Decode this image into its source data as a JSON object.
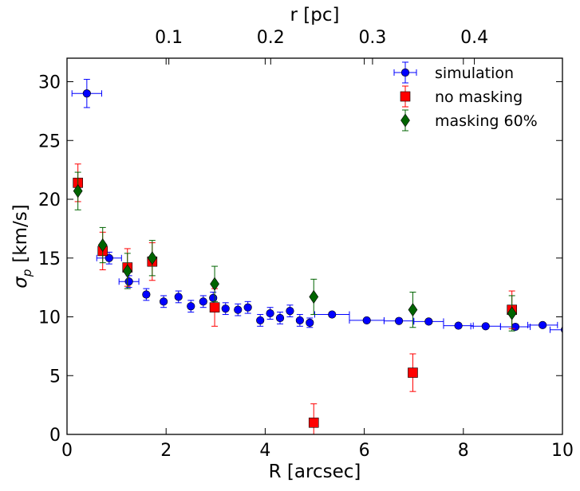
{
  "chart_data": {
    "type": "scatter",
    "xlabel": "R [arcsec]",
    "ylabel_symbol": "σ",
    "ylabel_subscript": "p",
    "ylabel_units": "[km/s]",
    "top_xlabel": "r [pc]",
    "xlim": [
      0,
      10
    ],
    "ylim": [
      0,
      32
    ],
    "top_xlim": [
      0,
      0.4865
    ],
    "xticks": [
      0,
      2,
      4,
      6,
      8,
      10
    ],
    "xtick_labels": [
      "0",
      "2",
      "4",
      "6",
      "8",
      "10"
    ],
    "yticks": [
      0,
      5,
      10,
      15,
      20,
      25,
      30
    ],
    "ytick_labels": [
      "0",
      "5",
      "10",
      "15",
      "20",
      "25",
      "30"
    ],
    "top_xticks": [
      0.1,
      0.2,
      0.3,
      0.4
    ],
    "top_xtick_labels": [
      "0.1",
      "0.2",
      "0.3",
      "0.4"
    ],
    "legend_position": "top-right",
    "series": [
      {
        "name": "simulation",
        "color": "#0000ff",
        "marker": "circle",
        "points": [
          {
            "x": 0.4,
            "y": 29.0,
            "xerr": 0.3,
            "yerr": 1.2
          },
          {
            "x": 0.85,
            "y": 15.0,
            "xerr": 0.25,
            "yerr": 0.5
          },
          {
            "x": 1.25,
            "y": 13.0,
            "xerr": 0.2,
            "yerr": 0.5
          },
          {
            "x": 1.6,
            "y": 11.9,
            "xerr": 0,
            "yerr": 0.5
          },
          {
            "x": 1.95,
            "y": 11.3,
            "xerr": 0,
            "yerr": 0.5
          },
          {
            "x": 2.25,
            "y": 11.7,
            "xerr": 0,
            "yerr": 0.5
          },
          {
            "x": 2.5,
            "y": 10.9,
            "xerr": 0,
            "yerr": 0.5
          },
          {
            "x": 2.75,
            "y": 11.3,
            "xerr": 0,
            "yerr": 0.5
          },
          {
            "x": 2.95,
            "y": 11.6,
            "xerr": 0,
            "yerr": 0.5
          },
          {
            "x": 3.2,
            "y": 10.7,
            "xerr": 0,
            "yerr": 0.5
          },
          {
            "x": 3.45,
            "y": 10.6,
            "xerr": 0,
            "yerr": 0.5
          },
          {
            "x": 3.65,
            "y": 10.8,
            "xerr": 0,
            "yerr": 0.5
          },
          {
            "x": 3.9,
            "y": 9.7,
            "xerr": 0,
            "yerr": 0.5
          },
          {
            "x": 4.1,
            "y": 10.3,
            "xerr": 0,
            "yerr": 0.5
          },
          {
            "x": 4.3,
            "y": 9.9,
            "xerr": 0,
            "yerr": 0.5
          },
          {
            "x": 4.5,
            "y": 10.5,
            "xerr": 0,
            "yerr": 0.5
          },
          {
            "x": 4.7,
            "y": 9.7,
            "xerr": 0,
            "yerr": 0.5
          },
          {
            "x": 4.9,
            "y": 9.5,
            "xerr": 0,
            "yerr": 0.4
          },
          {
            "x": 5.35,
            "y": 10.2,
            "xerr": 0.35,
            "yerr": 0
          },
          {
            "x": 6.05,
            "y": 9.7,
            "xerr": 0.35,
            "yerr": 0
          },
          {
            "x": 6.7,
            "y": 9.65,
            "xerr": 0.3,
            "yerr": 0
          },
          {
            "x": 7.3,
            "y": 9.6,
            "xerr": 0.3,
            "yerr": 0
          },
          {
            "x": 7.9,
            "y": 9.25,
            "xerr": 0.3,
            "yerr": 0
          },
          {
            "x": 8.45,
            "y": 9.2,
            "xerr": 0.3,
            "yerr": 0
          },
          {
            "x": 9.05,
            "y": 9.15,
            "xerr": 0.3,
            "yerr": 0
          },
          {
            "x": 9.6,
            "y": 9.3,
            "xerr": 0.3,
            "yerr": 0
          },
          {
            "x": 10.05,
            "y": 8.9,
            "xerr": 0.3,
            "yerr": 0
          }
        ]
      },
      {
        "name": "no masking",
        "color": "#ff0000",
        "marker": "square",
        "points": [
          {
            "x": 0.22,
            "y": 21.4,
            "xerr": 0,
            "yerr": 1.6
          },
          {
            "x": 0.72,
            "y": 15.6,
            "xerr": 0,
            "yerr": 1.6
          },
          {
            "x": 1.22,
            "y": 14.2,
            "xerr": 0,
            "yerr": 1.6
          },
          {
            "x": 1.72,
            "y": 14.7,
            "xerr": 0,
            "yerr": 1.6
          },
          {
            "x": 2.98,
            "y": 10.8,
            "xerr": 0,
            "yerr": 1.6
          },
          {
            "x": 4.98,
            "y": 1.0,
            "xerr": 0,
            "yerr": 1.6
          },
          {
            "x": 6.98,
            "y": 5.25,
            "xerr": 0,
            "yerr": 1.6
          },
          {
            "x": 8.98,
            "y": 10.6,
            "xerr": 0,
            "yerr": 1.6
          }
        ]
      },
      {
        "name": "masking 60%",
        "color": "#006400",
        "marker": "diamond",
        "points": [
          {
            "x": 0.22,
            "y": 20.7,
            "xerr": 0,
            "yerr": 1.6
          },
          {
            "x": 0.72,
            "y": 16.1,
            "xerr": 0,
            "yerr": 1.5
          },
          {
            "x": 1.22,
            "y": 13.9,
            "xerr": 0,
            "yerr": 1.5
          },
          {
            "x": 1.72,
            "y": 15.0,
            "xerr": 0,
            "yerr": 1.5
          },
          {
            "x": 2.98,
            "y": 12.8,
            "xerr": 0,
            "yerr": 1.5
          },
          {
            "x": 4.98,
            "y": 11.7,
            "xerr": 0,
            "yerr": 1.5
          },
          {
            "x": 6.98,
            "y": 10.6,
            "xerr": 0,
            "yerr": 1.5
          },
          {
            "x": 8.98,
            "y": 10.3,
            "xerr": 0,
            "yerr": 1.5
          }
        ]
      }
    ]
  }
}
